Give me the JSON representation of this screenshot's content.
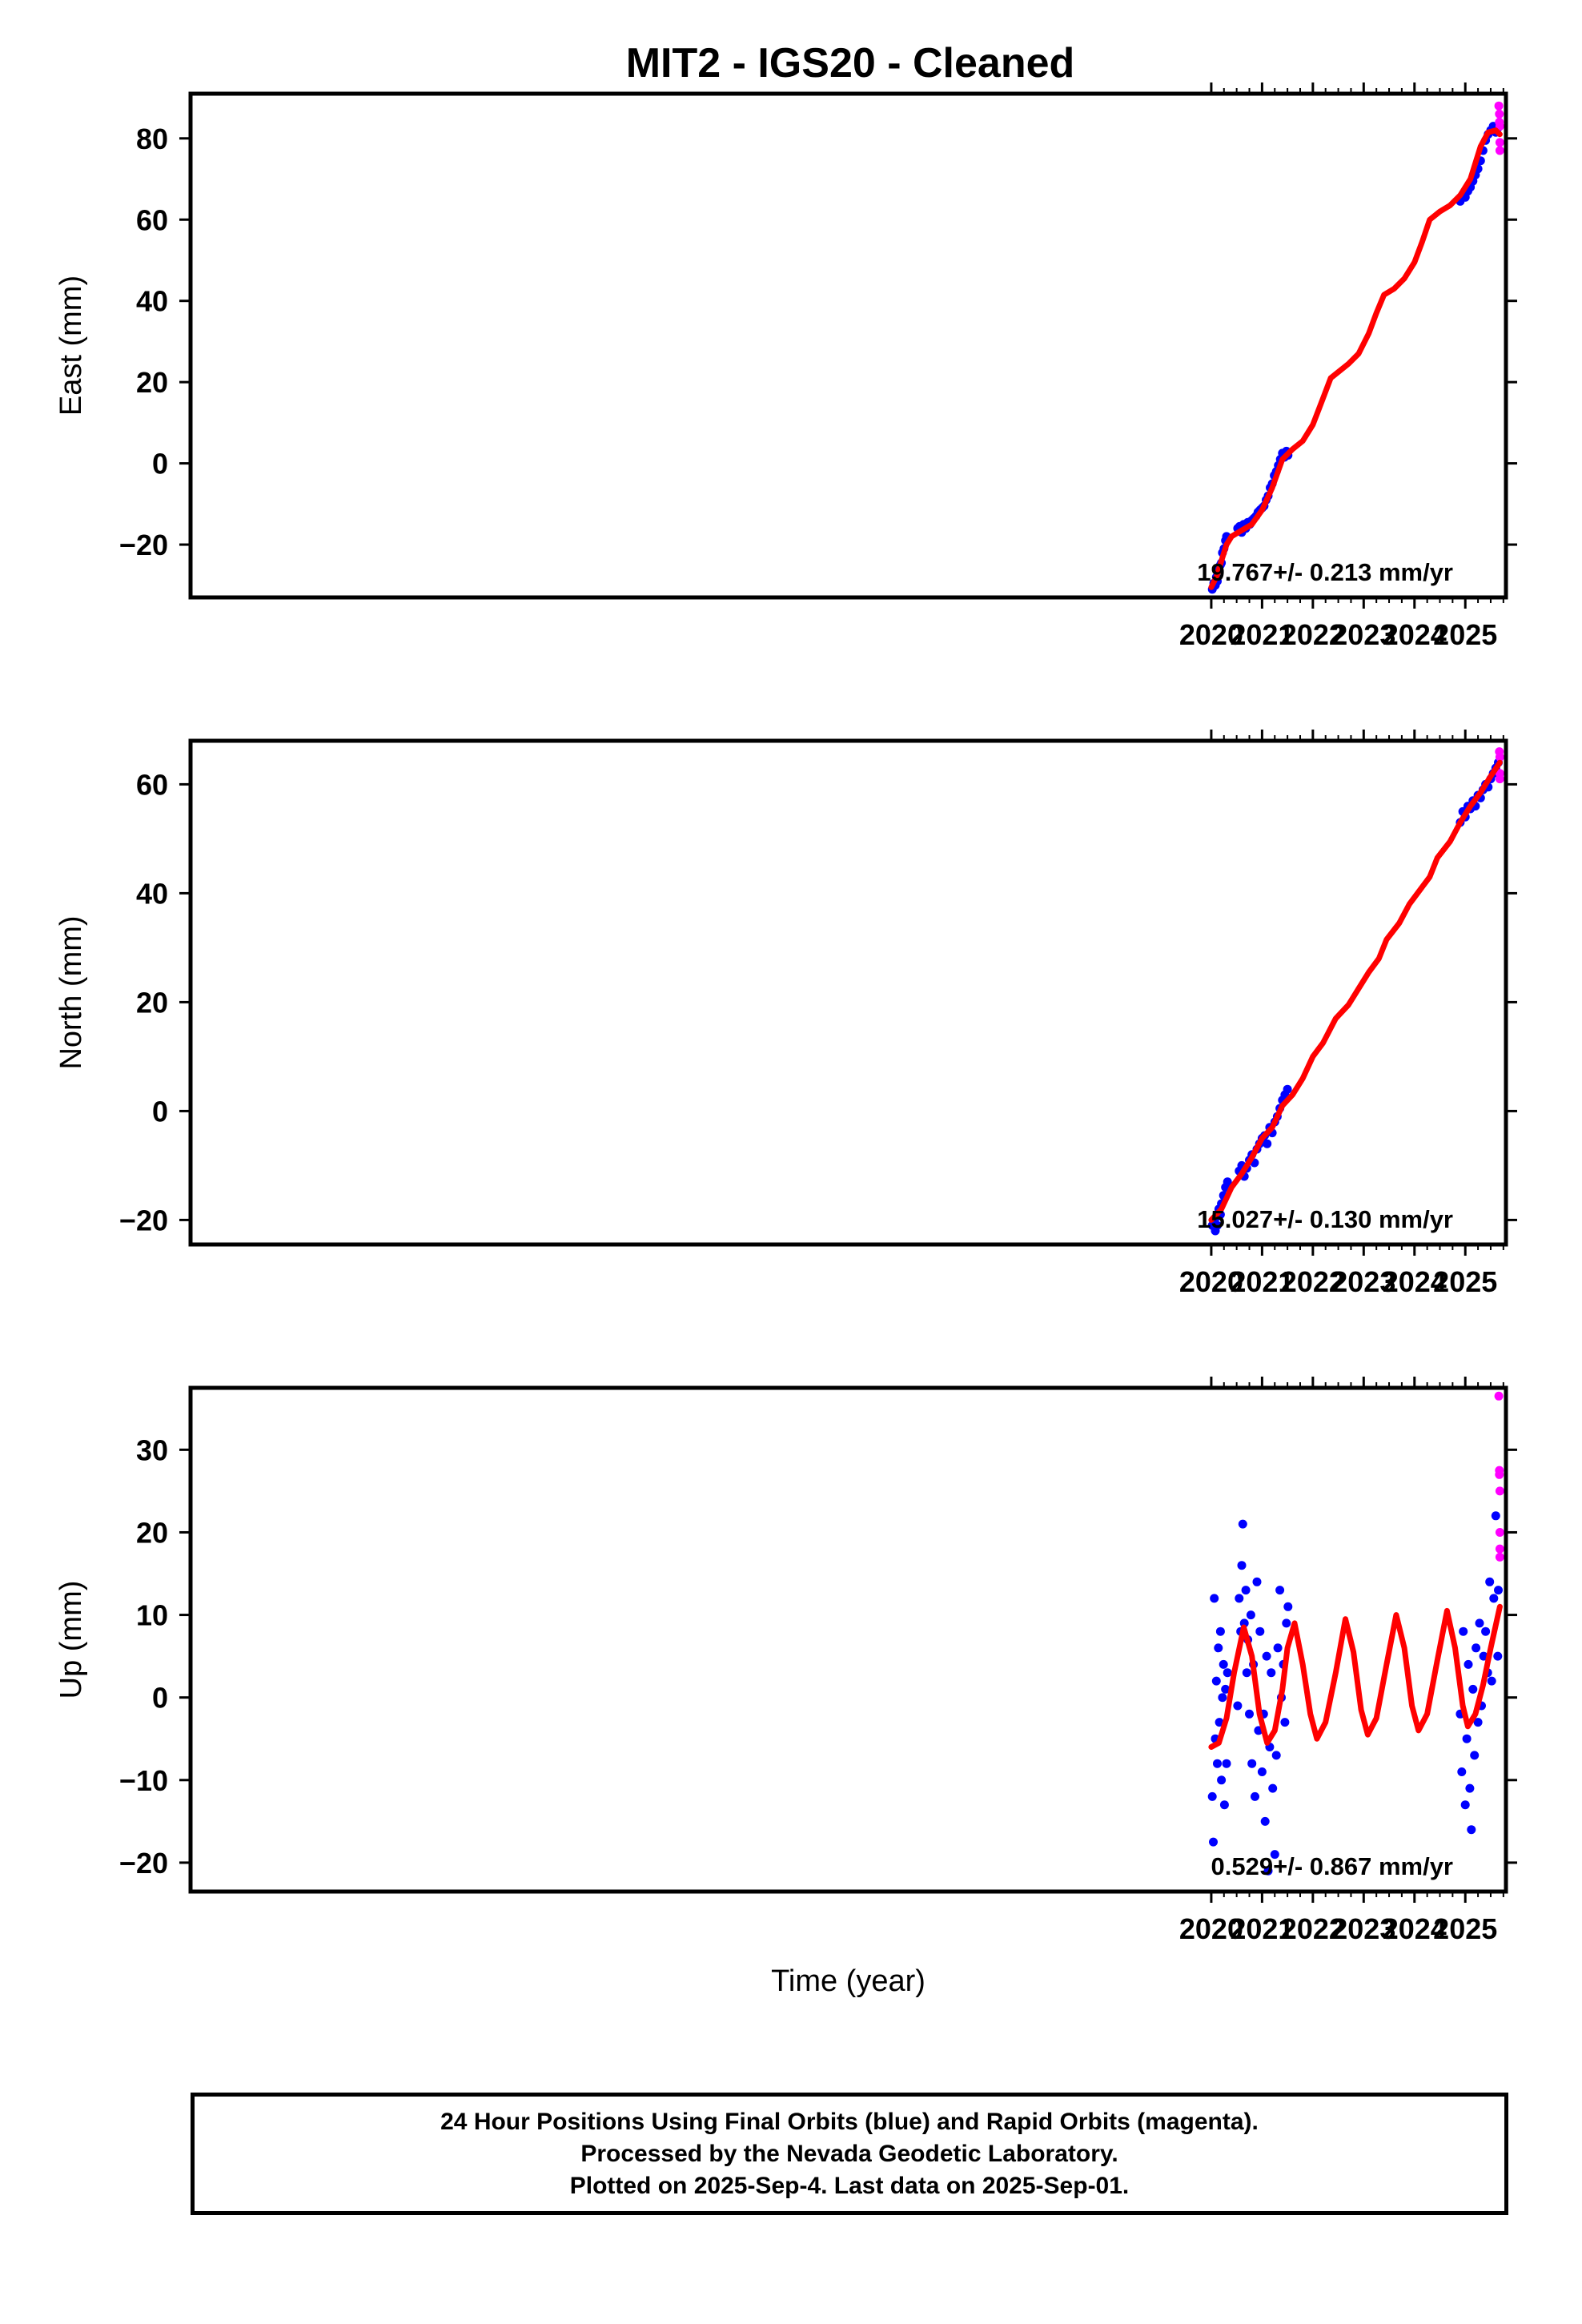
{
  "title": "MIT2  - IGS20 - Cleaned",
  "footer": {
    "line1": "24 Hour Positions Using Final Orbits (blue) and Rapid Orbits (magenta).",
    "line2": "Processed by the Nevada Geodetic Laboratory.",
    "line3": "Plotted on 2025-Sep-4. Last data on 2025-Sep-01."
  },
  "colors": {
    "final": "#0000ff",
    "rapid": "#ff00ff",
    "model": "#ff0000",
    "frame": "#000000"
  },
  "chart_data": [
    {
      "type": "scatter",
      "ylabel": "East (mm)",
      "xlabel": "",
      "xlim": [
        1999.91,
        2025.8
      ],
      "ylim": [
        -33,
        91
      ],
      "xticks": [
        "2020",
        "2021",
        "2022",
        "2023",
        "2024",
        "2025"
      ],
      "yticks": [
        "-20",
        "0",
        "20",
        "40",
        "60",
        "80"
      ],
      "rate_label": "19.767+/- 0.213 mm/yr",
      "model": {
        "name": "fit",
        "x": [
          2020.0,
          2020.1,
          2020.2,
          2020.3,
          2020.4,
          2020.6,
          2020.8,
          2021.0,
          2021.2,
          2021.4,
          2021.6,
          2021.8,
          2022.0,
          2022.2,
          2022.35,
          2022.5,
          2022.7,
          2022.9,
          2023.1,
          2023.25,
          2023.4,
          2023.6,
          2023.8,
          2024.0,
          2024.15,
          2024.3,
          2024.5,
          2024.7,
          2024.9,
          2025.1,
          2025.3,
          2025.45,
          2025.6,
          2025.68
        ],
        "y": [
          -30.5,
          -28,
          -24,
          -20,
          -18,
          -16.5,
          -15,
          -11.5,
          -6,
          1,
          3.5,
          5.5,
          9.5,
          16,
          21,
          22.5,
          24.5,
          27,
          32,
          37,
          41.5,
          43,
          45.5,
          49.5,
          54.5,
          60,
          62,
          63.5,
          66,
          70,
          78,
          81.5,
          82,
          81
        ]
      },
      "series": [
        {
          "name": "final",
          "x": [
            2020.02,
            2020.05,
            2020.08,
            2020.1,
            2020.12,
            2020.15,
            2020.18,
            2020.2,
            2020.22,
            2020.25,
            2020.28,
            2020.3,
            2020.52,
            2020.56,
            2020.6,
            2020.64,
            2020.68,
            2020.72,
            2020.76,
            2020.8,
            2020.84,
            2020.88,
            2020.92,
            2020.96,
            2021.0,
            2021.04,
            2021.08,
            2021.12,
            2021.16,
            2021.2,
            2021.24,
            2021.28,
            2021.32,
            2021.36,
            2021.4,
            2021.44,
            2021.48,
            2021.51,
            2024.9,
            2024.95,
            2025.0,
            2025.05,
            2025.1,
            2025.15,
            2025.2,
            2025.25,
            2025.3,
            2025.35,
            2025.4,
            2025.45,
            2025.5,
            2025.55,
            2025.6,
            2025.64
          ],
          "y": [
            -31,
            -29.5,
            -30,
            -28,
            -29,
            -26,
            -25,
            -24.5,
            -22,
            -21,
            -19,
            -18,
            -16,
            -15.5,
            -17,
            -15,
            -16,
            -14.5,
            -15,
            -14,
            -13.5,
            -13,
            -12,
            -11.5,
            -11,
            -10.5,
            -9,
            -8,
            -6,
            -5,
            -3,
            -2,
            -0.5,
            1,
            2.5,
            1.5,
            3,
            2,
            64.5,
            66,
            65.5,
            67,
            68,
            69.5,
            71,
            72.5,
            74.5,
            77,
            79.5,
            81,
            82,
            83,
            81.5,
            82.5
          ]
        },
        {
          "name": "rapid",
          "x": [
            2025.66,
            2025.67,
            2025.67,
            2025.68,
            2025.68,
            2025.68
          ],
          "y": [
            88,
            86,
            84,
            83,
            79,
            77
          ]
        }
      ]
    },
    {
      "type": "scatter",
      "ylabel": "North (mm)",
      "xlabel": "",
      "xlim": [
        1999.91,
        2025.8
      ],
      "ylim": [
        -24.5,
        68
      ],
      "xticks": [
        "2020",
        "2021",
        "2022",
        "2023",
        "2024",
        "2025"
      ],
      "yticks": [
        "-20",
        "0",
        "20",
        "40",
        "60"
      ],
      "rate_label": "15.027+/- 0.130 mm/yr",
      "model": {
        "name": "fit",
        "x": [
          2020.0,
          2020.2,
          2020.4,
          2020.6,
          2020.8,
          2021.0,
          2021.2,
          2021.4,
          2021.6,
          2021.8,
          2022.0,
          2022.2,
          2022.45,
          2022.7,
          2022.9,
          2023.1,
          2023.3,
          2023.45,
          2023.7,
          2023.9,
          2024.1,
          2024.3,
          2024.45,
          2024.7,
          2024.9,
          2025.1,
          2025.3,
          2025.5,
          2025.68
        ],
        "y": [
          -20,
          -18,
          -14,
          -11.5,
          -8.5,
          -5,
          -3,
          1,
          3,
          6,
          10,
          12.5,
          17,
          19.5,
          22.5,
          25.5,
          28,
          31.5,
          34.5,
          38,
          40.5,
          43,
          46.5,
          49.5,
          53,
          56,
          58.5,
          61.5,
          64
        ]
      },
      "series": [
        {
          "name": "final",
          "x": [
            2020.02,
            2020.05,
            2020.08,
            2020.1,
            2020.12,
            2020.15,
            2020.18,
            2020.2,
            2020.24,
            2020.28,
            2020.32,
            2020.55,
            2020.6,
            2020.65,
            2020.7,
            2020.75,
            2020.8,
            2020.85,
            2020.9,
            2020.95,
            2021.0,
            2021.05,
            2021.1,
            2021.15,
            2021.2,
            2021.25,
            2021.3,
            2021.35,
            2021.4,
            2021.45,
            2021.5,
            2024.9,
            2024.95,
            2025.0,
            2025.05,
            2025.1,
            2025.15,
            2025.2,
            2025.25,
            2025.3,
            2025.35,
            2025.4,
            2025.45,
            2025.5,
            2025.55,
            2025.6,
            2025.65
          ],
          "y": [
            -21,
            -20,
            -22,
            -19.5,
            -21,
            -18,
            -19,
            -17,
            -15.5,
            -14,
            -13,
            -11,
            -10,
            -12,
            -10.5,
            -9,
            -8,
            -9.5,
            -7,
            -6,
            -5,
            -4.5,
            -6,
            -3,
            -4,
            -2,
            -1,
            0.5,
            2,
            3,
            4,
            53,
            55,
            54,
            56,
            55.5,
            57,
            56,
            58,
            57.5,
            59,
            60,
            59.5,
            61,
            62,
            63,
            64
          ]
        },
        {
          "name": "rapid",
          "x": [
            2025.67,
            2025.68,
            2025.68,
            2025.68
          ],
          "y": [
            66,
            65,
            62,
            61
          ]
        }
      ]
    },
    {
      "type": "scatter",
      "ylabel": "Up (mm)",
      "xlabel": "Time (year)",
      "xlim": [
        1999.91,
        2025.8
      ],
      "ylim": [
        -23.5,
        37.5
      ],
      "xticks": [
        "2020",
        "2021",
        "2022",
        "2023",
        "2024",
        "2025"
      ],
      "yticks": [
        "-20",
        "-10",
        "0",
        "10",
        "20",
        "30"
      ],
      "rate_label": "0.529+/- 0.867 mm/yr",
      "model": {
        "name": "fit",
        "x": [
          2020.0,
          2020.15,
          2020.3,
          2020.45,
          2020.64,
          2020.8,
          2020.95,
          2021.1,
          2021.25,
          2021.4,
          2021.5,
          2021.64,
          2021.8,
          2021.95,
          2022.08,
          2022.25,
          2022.45,
          2022.64,
          2022.8,
          2022.95,
          2023.08,
          2023.25,
          2023.45,
          2023.64,
          2023.8,
          2023.95,
          2024.08,
          2024.25,
          2024.45,
          2024.64,
          2024.8,
          2024.95,
          2025.05,
          2025.2,
          2025.35,
          2025.5,
          2025.68
        ],
        "y": [
          -6,
          -5.5,
          -2.5,
          3,
          8.5,
          5,
          -2,
          -5.5,
          -4,
          1,
          6,
          9,
          4,
          -2,
          -5,
          -3,
          3,
          9.5,
          5.5,
          -1.5,
          -4.5,
          -2.5,
          4,
          10,
          6,
          -1,
          -4,
          -2,
          4.5,
          10.5,
          6,
          -1,
          -3.5,
          -2,
          1.5,
          6,
          11
        ]
      },
      "series": [
        {
          "name": "final",
          "x": [
            2020.02,
            2020.04,
            2020.06,
            2020.08,
            2020.1,
            2020.12,
            2020.14,
            2020.16,
            2020.18,
            2020.2,
            2020.22,
            2020.24,
            2020.26,
            2020.28,
            2020.3,
            2020.32,
            2020.52,
            2020.55,
            2020.58,
            2020.6,
            2020.62,
            2020.65,
            2020.68,
            2020.7,
            2020.72,
            2020.75,
            2020.78,
            2020.8,
            2020.83,
            2020.86,
            2020.9,
            2020.93,
            2020.96,
            2021.0,
            2021.03,
            2021.06,
            2021.09,
            2021.12,
            2021.15,
            2021.18,
            2021.21,
            2021.25,
            2021.28,
            2021.31,
            2021.35,
            2021.38,
            2021.42,
            2021.45,
            2021.48,
            2021.51,
            2024.9,
            2024.93,
            2024.96,
            2025.0,
            2025.03,
            2025.06,
            2025.09,
            2025.12,
            2025.15,
            2025.18,
            2025.21,
            2025.25,
            2025.28,
            2025.32,
            2025.36,
            2025.4,
            2025.44,
            2025.48,
            2025.52,
            2025.56,
            2025.6,
            2025.64,
            2025.65
          ],
          "y": [
            -12,
            -17.5,
            12,
            -5,
            2,
            -8,
            6,
            -3,
            8,
            -10,
            0,
            4,
            -13,
            1,
            -8,
            3,
            -1,
            12,
            8,
            16,
            21,
            9,
            13,
            3,
            7,
            -2,
            10,
            -8,
            4,
            -12,
            14,
            -4,
            8,
            -9,
            -2,
            -15,
            5,
            -21,
            -6,
            3,
            -11,
            -19,
            -7,
            6,
            13,
            0,
            4,
            -3,
            9,
            11,
            -2,
            -9,
            8,
            -13,
            -5,
            4,
            -11,
            -16,
            1,
            -7,
            6,
            -3,
            9,
            -1,
            5,
            8,
            3,
            14,
            2,
            12,
            22,
            5,
            13
          ]
        },
        {
          "name": "rapid",
          "x": [
            2025.66,
            2025.67,
            2025.67,
            2025.68,
            2025.68,
            2025.68,
            2025.68
          ],
          "y": [
            36.5,
            27.5,
            27,
            25,
            20,
            18,
            17
          ]
        }
      ]
    }
  ]
}
